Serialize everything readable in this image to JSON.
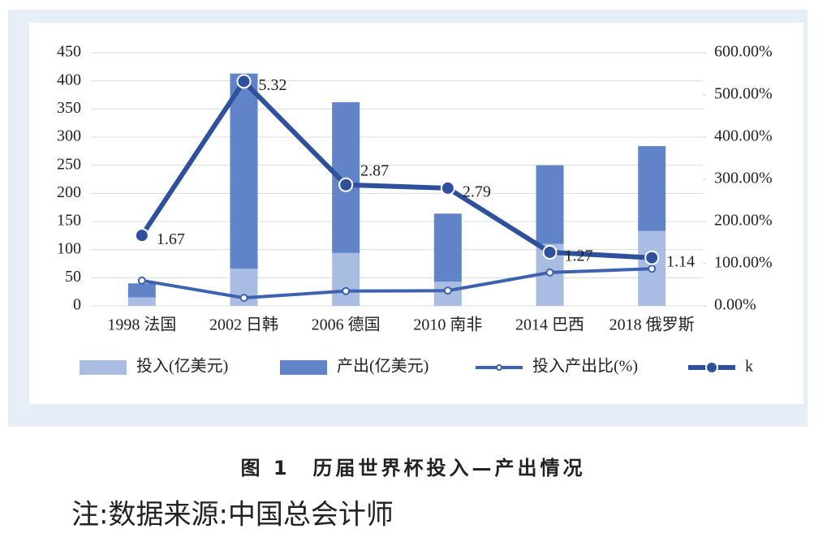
{
  "chart_data": {
    "type": "bar-line",
    "categories": [
      "1998 法国",
      "2002 日韩",
      "2006 德国",
      "2010 南非",
      "2014 巴西",
      "2018 俄罗斯"
    ],
    "series": [
      {
        "name": "投入(亿美元)",
        "type": "bar",
        "color": "#a9bde3",
        "values": [
          15,
          66,
          94,
          43,
          110,
          133
        ]
      },
      {
        "name": "产出(亿美元)",
        "type": "bar",
        "color": "#6183c8",
        "values": [
          25,
          347,
          268,
          121,
          140,
          151
        ]
      },
      {
        "name": "投入产出比(%)",
        "type": "line",
        "axis": "y2",
        "color": "#3d62b0",
        "values": [
          60,
          19,
          35,
          36,
          79,
          88
        ]
      },
      {
        "name": "k",
        "type": "line",
        "axis": "y2",
        "color": "#2f519c",
        "values": [
          167,
          532,
          287,
          279,
          127,
          114
        ],
        "value_labels": [
          "1.67",
          "5.32",
          "2.87",
          "2.79",
          "1.27",
          "1.14"
        ]
      }
    ],
    "ylim": [
      0,
      450
    ],
    "yticks": [
      0,
      50,
      100,
      150,
      200,
      250,
      300,
      350,
      400,
      450
    ],
    "y2lim": [
      0,
      600
    ],
    "y2ticks": [
      {
        "value": 0,
        "label": "0.00%"
      },
      {
        "value": 100,
        "label": "100.00%"
      },
      {
        "value": 200,
        "label": "200.00%"
      },
      {
        "value": 300,
        "label": "300.00%"
      },
      {
        "value": 400,
        "label": "400.00%"
      },
      {
        "value": 500,
        "label": "500.00%"
      },
      {
        "value": 600,
        "label": "600.00%"
      }
    ],
    "grid": true,
    "caption": "图 1　历届世界杯投入—产出情况",
    "note": "注:数据来源:中国总会计师"
  }
}
